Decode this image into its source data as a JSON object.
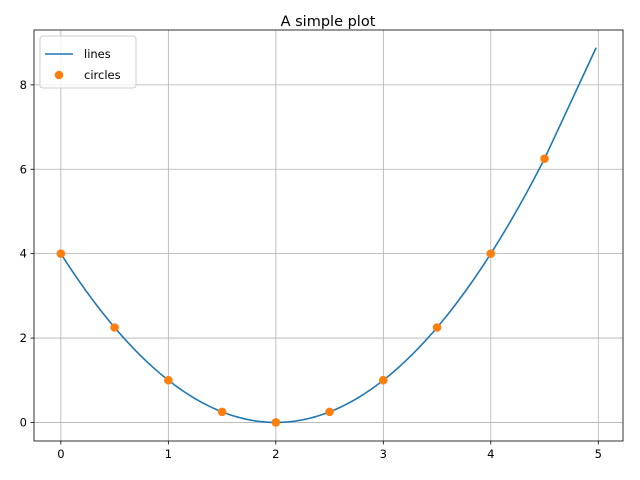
{
  "chart_data": {
    "type": "line",
    "title": "A simple plot",
    "xlabel": "",
    "ylabel": "",
    "xlim": [
      -0.25,
      5.23
    ],
    "ylim": [
      -0.44,
      9.3
    ],
    "x_ticks": [
      "0",
      "1",
      "2",
      "3",
      "4",
      "5"
    ],
    "y_ticks": [
      "0",
      "2",
      "4",
      "6",
      "8"
    ],
    "grid": true,
    "legend": "upper-left",
    "series": [
      {
        "name": "lines",
        "kind": "line",
        "color": "#1f77b4",
        "x": [
          0,
          0.5,
          1,
          1.5,
          2,
          2.5,
          3,
          3.5,
          4,
          4.5,
          4.98
        ],
        "y": [
          4.0,
          2.25,
          1.0,
          0.25,
          0.0,
          0.25,
          1.0,
          2.25,
          4.0,
          6.25,
          8.88
        ]
      },
      {
        "name": "circles",
        "kind": "markers",
        "color": "#ff7f0e",
        "x": [
          0,
          0.5,
          1,
          1.5,
          2,
          2.5,
          3,
          3.5,
          4,
          4.5
        ],
        "y": [
          4.0,
          2.25,
          1.0,
          0.25,
          0.0,
          0.25,
          1.0,
          2.25,
          4.0,
          6.25
        ]
      }
    ]
  }
}
